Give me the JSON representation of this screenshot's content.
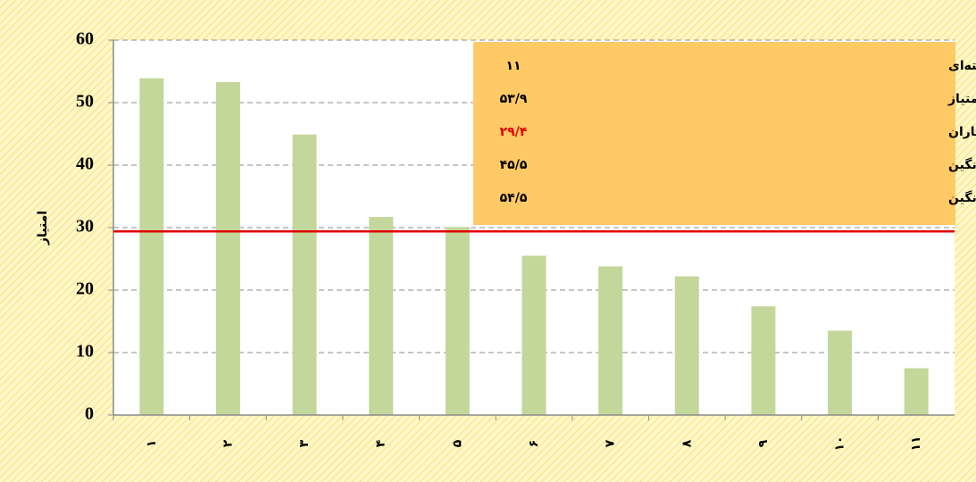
{
  "chart_data": {
    "type": "bar",
    "y_label": "امتیاز",
    "categories": [
      "۱",
      "۲",
      "۳",
      "۴",
      "۵",
      "۶",
      "۷",
      "۸",
      "۹",
      "۱۰",
      "۱۱"
    ],
    "values": [
      53.9,
      53.3,
      44.9,
      31.7,
      30.1,
      25.5,
      23.8,
      22.2,
      17.4,
      13.5,
      7.5
    ],
    "color": "#c4d79b",
    "ylim": [
      0,
      60
    ],
    "yticks": [
      0,
      10,
      20,
      30,
      40,
      50,
      60
    ],
    "grid": true,
    "reference_line": {
      "value": 29.4,
      "color": "#e00000"
    },
    "stats_box": {
      "color": "#ffc966",
      "rows": [
        {
          "label": "تعداد همکاران با تخصص گلخانه و مشترک بین‌رشته‌ای",
          "value": "۱۱",
          "color": "#000000"
        },
        {
          "label": "بیش‌ترین امتیاز",
          "value": "۵۳/۹",
          "color": "#000000"
        },
        {
          "label": "میانگین امتیاز همکاران",
          "value": "۲۹/۴",
          "color": "#e00000"
        },
        {
          "label": "درصد همکاران با امتیاز بیش از میانگین",
          "value": "۴۵/۵",
          "color": "#000000"
        },
        {
          "label": "درصد همکاران با امتیاز کم‌تر از میانگین",
          "value": "۵۴/۵",
          "color": "#000000"
        }
      ]
    }
  }
}
